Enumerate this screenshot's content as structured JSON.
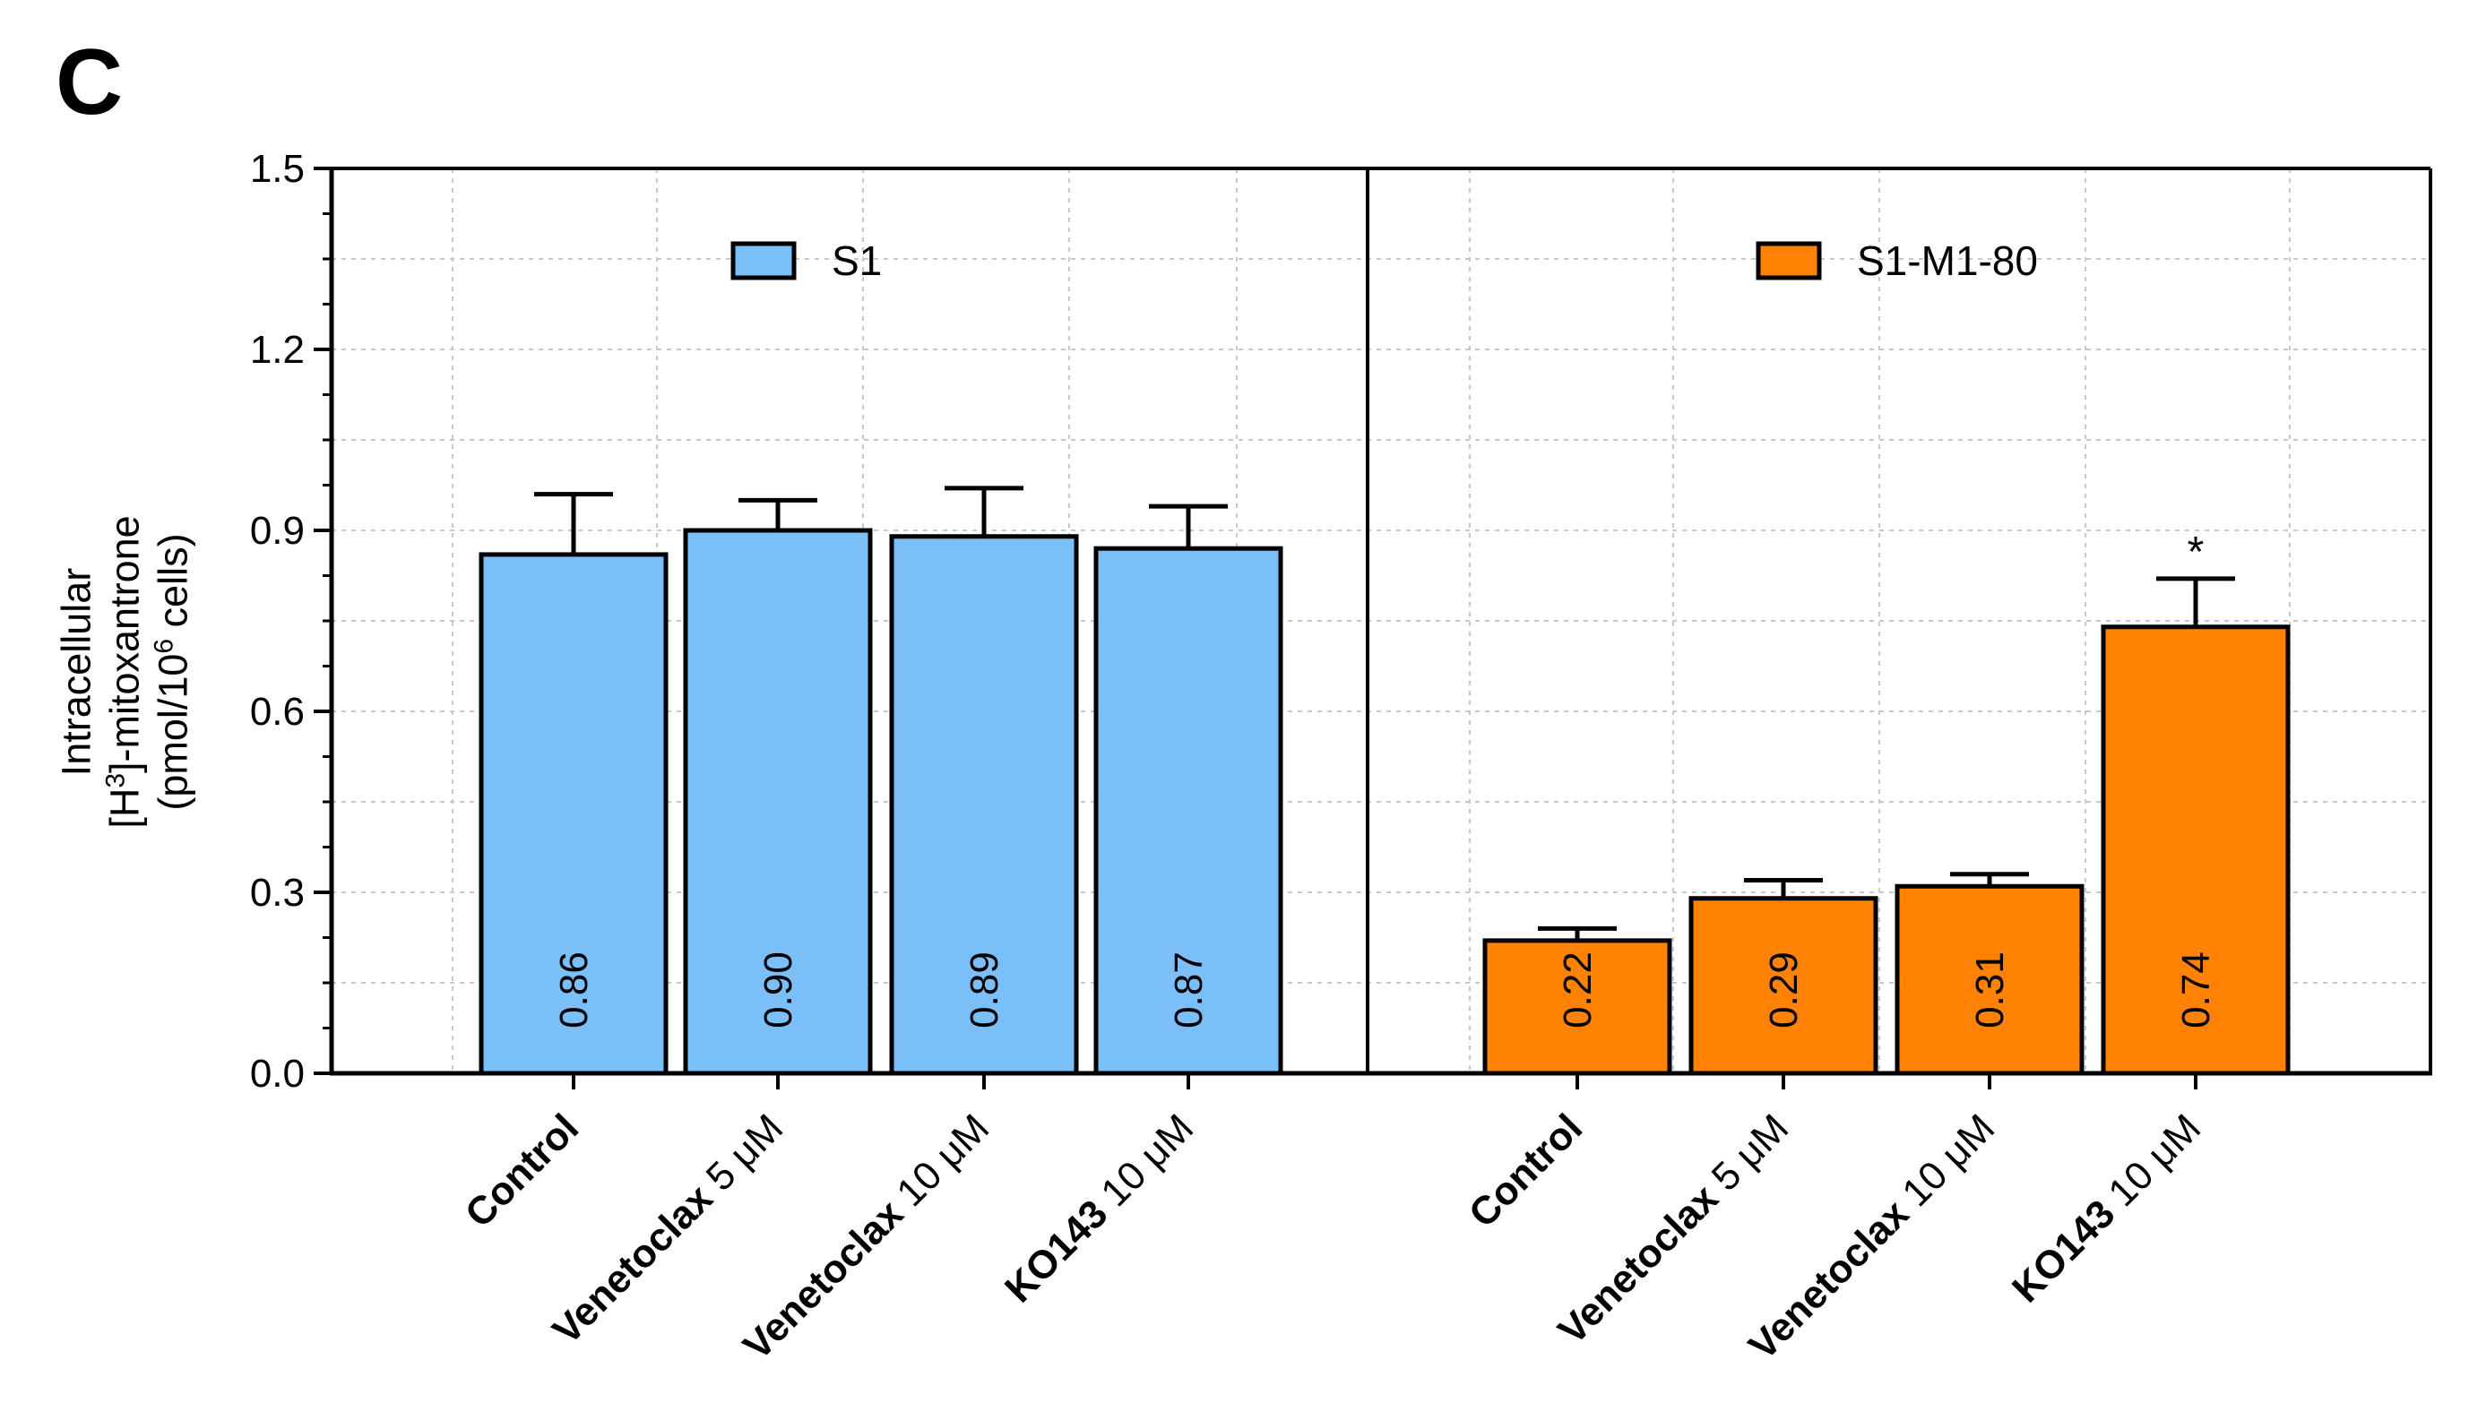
{
  "panel_label": "C",
  "y_axis_label": {
    "line1": "Intracellular",
    "line2_pre": "[H",
    "line2_sup": "3",
    "line2_post": "]-mitoxantrone",
    "line3_pre": "(pmol/10",
    "line3_sup": "6",
    "line3_post": " cells)"
  },
  "colors": {
    "s1": "#7ABFF8",
    "s1m180": "#FF8204",
    "axis": "#000000",
    "grid": "#C8C8C8"
  },
  "chart_data": {
    "type": "bar",
    "ylim": [
      0,
      1.5
    ],
    "yticks": [
      0.0,
      0.3,
      0.6,
      0.9,
      1.2,
      1.5
    ],
    "ytick_labels": [
      "0.0",
      "0.3",
      "0.6",
      "0.9",
      "1.2",
      "1.5"
    ],
    "grid": true,
    "legend_placement": "top-center of each panel",
    "panels": [
      {
        "series_name": "S1",
        "color_key": "s1",
        "categories": [
          {
            "bold": "Control",
            "rest": ""
          },
          {
            "bold": "Venetoclax",
            "rest": " 5 μM"
          },
          {
            "bold": "Venetoclax",
            "rest": " 10 μM"
          },
          {
            "bold": "KO143",
            "rest": " 10 μM"
          }
        ],
        "values": [
          0.86,
          0.9,
          0.89,
          0.87
        ],
        "value_labels": [
          "0.86",
          "0.90",
          "0.89",
          "0.87"
        ],
        "errors": [
          0.1,
          0.05,
          0.08,
          0.07
        ],
        "annotations": [
          "",
          "",
          "",
          ""
        ]
      },
      {
        "series_name": "S1-M1-80",
        "color_key": "s1m180",
        "categories": [
          {
            "bold": "Control",
            "rest": ""
          },
          {
            "bold": "Venetoclax",
            "rest": " 5 μM"
          },
          {
            "bold": "Venetoclax",
            "rest": " 10 μM"
          },
          {
            "bold": "KO143",
            "rest": " 10 μM"
          }
        ],
        "values": [
          0.22,
          0.29,
          0.31,
          0.74
        ],
        "value_labels": [
          "0.22",
          "0.29",
          "0.31",
          "0.74"
        ],
        "errors": [
          0.02,
          0.03,
          0.02,
          0.08
        ],
        "annotations": [
          "",
          "",
          "",
          "*"
        ]
      }
    ]
  }
}
